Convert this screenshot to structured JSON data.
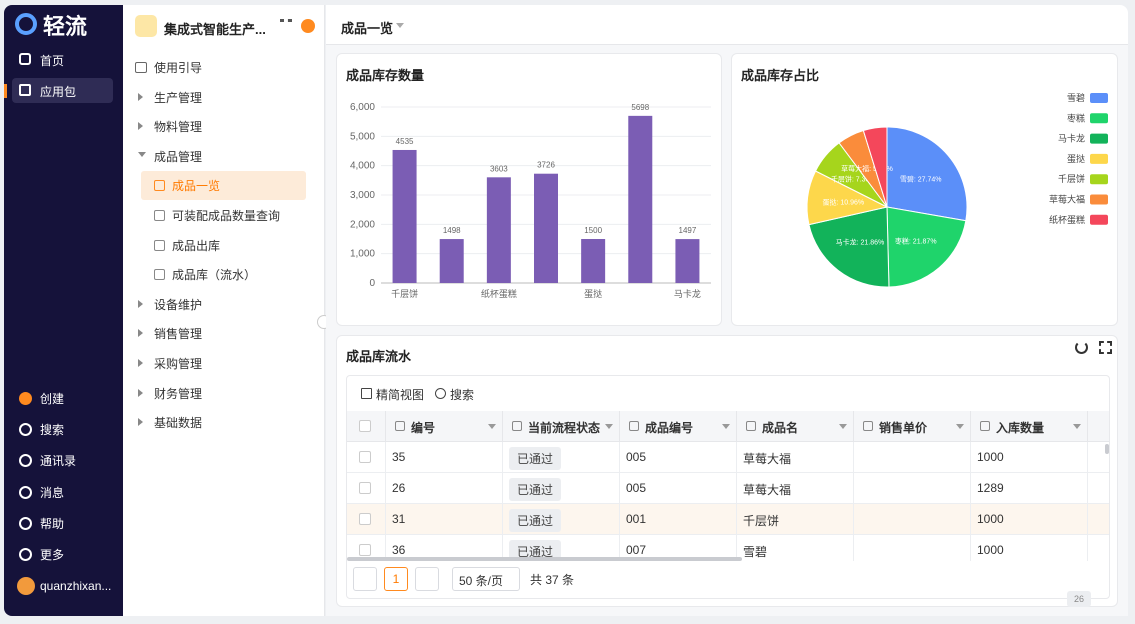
{
  "sidebar": {
    "logo": "轻流",
    "nav": [
      "首页",
      "应用包"
    ],
    "bottom": [
      "创建",
      "搜索",
      "通讯录",
      "消息",
      "帮助",
      "更多"
    ],
    "user": "quanzhixan..."
  },
  "app_panel": {
    "title": "集成式智能生产...",
    "tree": [
      {
        "label": "使用引导"
      },
      {
        "label": "生产管理"
      },
      {
        "label": "物料管理"
      },
      {
        "label": "成品管理",
        "children": [
          {
            "label": "成品一览",
            "selected": true
          },
          {
            "label": "可装配成品数量查询"
          },
          {
            "label": "成品出库"
          },
          {
            "label": "成品库（流水）"
          }
        ]
      },
      {
        "label": "设备维护"
      },
      {
        "label": "销售管理"
      },
      {
        "label": "采购管理"
      },
      {
        "label": "财务管理"
      },
      {
        "label": "基础数据"
      }
    ]
  },
  "header": {
    "title": "成品一览"
  },
  "chart_data": [
    {
      "type": "bar",
      "title": "成品库存数量",
      "categories": [
        "千层饼",
        null,
        "纸杯蛋糕",
        null,
        "蛋挞",
        null,
        "马卡龙"
      ],
      "values": [
        4535,
        1498,
        3603,
        3726,
        1500,
        5698,
        1497
      ],
      "color": "#7b5db4",
      "ylim": [
        0,
        6000
      ],
      "yticks": [
        0,
        {
          "value": 1000,
          "label": "1,000"
        },
        {
          "value": 2000,
          "label": "2,000"
        },
        {
          "value": 3000,
          "label": "3,000"
        },
        {
          "value": 4000,
          "label": "4,000"
        },
        {
          "value": 5000,
          "label": "5,000"
        },
        {
          "value": 6000,
          "label": "6,000"
        }
      ],
      "grid": true
    },
    {
      "type": "pie",
      "title": "成品库存占比",
      "categories": [
        "雪碧",
        "枣糕",
        "马卡龙",
        "蛋挞",
        "千层饼",
        "草莓大福",
        "纸杯蛋糕"
      ],
      "values": [
        27.74,
        21.87,
        21.86,
        10.96,
        7.36,
        5.44,
        4.77
      ],
      "value_labels": [
        "雪碧: 27.74%",
        "枣糕: 21.87%",
        "马卡龙: 21.86%",
        "蛋挞: 10.96%",
        "千层饼: 7.36%",
        "草莓大福: 5.44%",
        null
      ],
      "colors": [
        "#5b8ff9",
        "#1fd46b",
        "#12b35a",
        "#fdd74b",
        "#a6d51c",
        "#fa8c3b",
        "#f4475b"
      ],
      "legend": "right"
    }
  ],
  "table_section": {
    "title": "成品库流水",
    "toolbar": [
      "精简视图",
      "搜索"
    ],
    "columns": [
      "编号",
      "当前流程状态",
      "成品编号",
      "成品名",
      "销售单价",
      "入库数量"
    ],
    "rows": [
      [
        "35",
        "已通过",
        "005",
        "草莓大福",
        null,
        "1000"
      ],
      [
        "26",
        "已通过",
        "005",
        "草莓大福",
        null,
        "1289"
      ],
      [
        "31",
        "已通过",
        "001",
        "千层饼",
        null,
        "1000"
      ],
      [
        "36",
        "已通过",
        "007",
        "雪碧",
        null,
        "1000"
      ]
    ],
    "pagination": {
      "page": "1",
      "page_size": "50 条/页",
      "total": "共 37 条"
    }
  },
  "page_badge": "26"
}
